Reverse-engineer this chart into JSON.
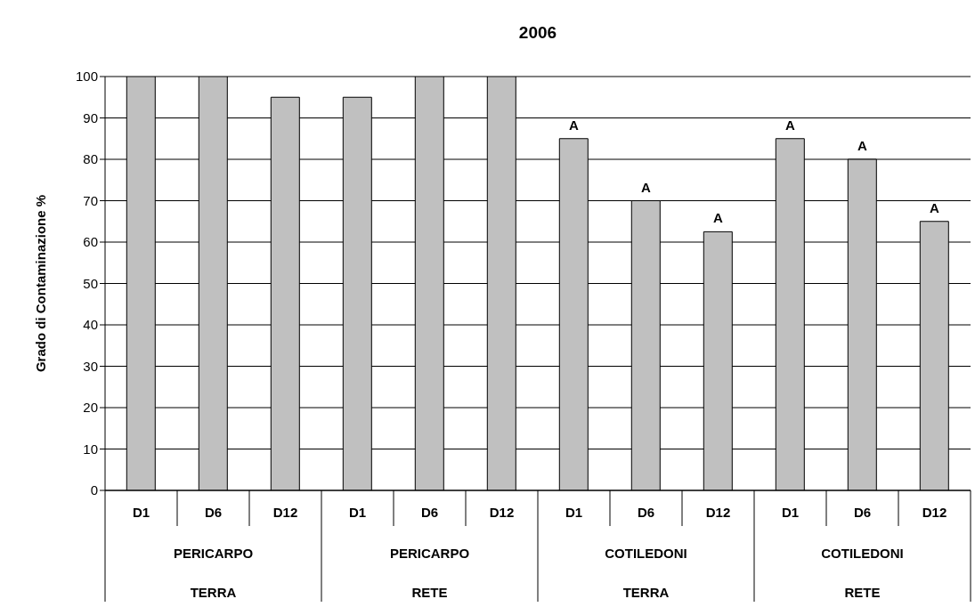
{
  "chart_data": {
    "type": "bar",
    "title": "2006",
    "ylabel": "Grado di Contaminazione %",
    "categories": [
      "D1",
      "D6",
      "D12",
      "D1",
      "D6",
      "D12",
      "D1",
      "D6",
      "D12",
      "D1",
      "D6",
      "D12"
    ],
    "values": [
      100,
      100,
      95,
      95,
      100,
      100,
      85,
      70,
      62.5,
      85,
      80,
      65
    ],
    "value_labels": [
      null,
      null,
      null,
      null,
      null,
      null,
      "A",
      "A",
      "A",
      "A",
      "A",
      "A"
    ],
    "color": "#c0c0c0",
    "annotations": [
      "PERICARPO",
      "TERRA",
      "PERICARPO",
      "RETE",
      "COTILEDONI",
      "TERRA",
      "COTILEDONI",
      "RETE"
    ],
    "ylim": [
      0,
      100
    ],
    "yticks": [
      0,
      10,
      20,
      30,
      40,
      50,
      60,
      70,
      80,
      90,
      100
    ],
    "grid": "y"
  }
}
